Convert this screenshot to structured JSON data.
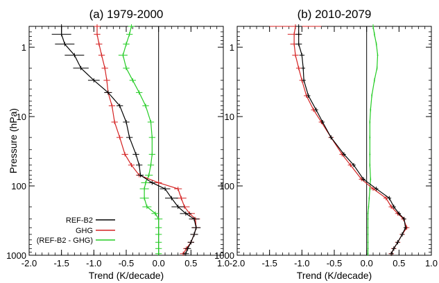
{
  "chart_data": {
    "type": "line",
    "xlabel": "Trend (K/decade)",
    "ylabel": "Pressure (hPa)",
    "xlim": [
      -2.0,
      1.0
    ],
    "ylim": [
      1000,
      0.5
    ],
    "yscale": "log",
    "x_tick_labels": [
      "-2.0",
      "-1.5",
      "-1.0",
      "-0.5",
      "0.0",
      "0.5",
      "1.0"
    ],
    "x_tick_values": [
      -2.0,
      -1.5,
      -1.0,
      -0.5,
      0.0,
      0.5,
      1.0
    ],
    "y_tick_labels": [
      "1",
      "10",
      "100",
      "1000"
    ],
    "y_tick_values": [
      1,
      10,
      100,
      1000
    ],
    "grid": false,
    "legend": {
      "placement": "bottom-left",
      "entries": [
        "REF-B2",
        "GHG",
        "(REF-B2 - GHG)"
      ]
    },
    "colors": {
      "REF-B2": "#000000",
      "GHG": "#d42020",
      "(REF-B2 - GHG)": "#22cc22",
      "zero_line": "#000000"
    },
    "panels": [
      {
        "title": "(a) 1979-2000",
        "series": [
          {
            "name": "REF-B2",
            "trend": [
              -1.5,
              -1.5,
              -1.45,
              -1.3,
              -1.2,
              -1.0,
              -0.78,
              -0.6,
              -0.5,
              -0.45,
              -0.35,
              -0.3,
              -0.28,
              -0.1,
              0.1,
              0.2,
              0.3,
              0.42,
              0.55,
              0.58,
              0.55,
              0.5,
              0.45,
              0.42
            ],
            "pressure": [
              0.5,
              0.65,
              0.9,
              1.3,
              2.0,
              3.0,
              4.5,
              7.0,
              12,
              20,
              35,
              50,
              70,
              90,
              110,
              150,
              200,
              250,
              300,
              400,
              500,
              650,
              800,
              950
            ],
            "error": [
              0.15,
              0.15,
              0.15,
              0.15,
              0.12,
              0.09,
              0.06,
              0.05,
              0.05,
              0.05,
              0.05,
              0.05,
              0.05,
              0.05,
              0.08,
              0.1,
              0.1,
              0.09,
              0.08,
              0.07,
              0.06,
              0.05,
              0.05,
              0.05
            ]
          },
          {
            "name": "GHG",
            "trend": [
              -0.95,
              -0.95,
              -0.92,
              -0.88,
              -0.83,
              -0.8,
              -0.78,
              -0.72,
              -0.68,
              -0.6,
              -0.52,
              -0.42,
              -0.3,
              0.0,
              0.3,
              0.35,
              0.4,
              0.48,
              0.57,
              0.58,
              0.55,
              0.5,
              0.43,
              0.38
            ],
            "pressure": [
              0.5,
              0.65,
              0.9,
              1.3,
              2.0,
              3.0,
              4.5,
              7.0,
              12,
              20,
              35,
              50,
              70,
              90,
              110,
              150,
              200,
              250,
              300,
              400,
              500,
              650,
              800,
              950
            ],
            "error": [
              0.05,
              0.05,
              0.05,
              0.05,
              0.05,
              0.05,
              0.05,
              0.05,
              0.05,
              0.05,
              0.05,
              0.05,
              0.05,
              0.05,
              0.06,
              0.08,
              0.08,
              0.08,
              0.07,
              0.06,
              0.05,
              0.05,
              0.05,
              0.05
            ]
          },
          {
            "name": "(REF-B2 - GHG)",
            "trend": [
              -0.42,
              -0.45,
              -0.5,
              -0.55,
              -0.5,
              -0.4,
              -0.3,
              -0.2,
              -0.12,
              -0.1,
              -0.1,
              -0.12,
              -0.15,
              -0.2,
              -0.22,
              -0.22,
              -0.18,
              -0.05,
              0.0,
              0.0,
              0.0,
              0.0,
              0.0,
              0.0
            ],
            "pressure": [
              0.5,
              0.65,
              0.9,
              1.3,
              2.0,
              3.0,
              4.5,
              7.0,
              12,
              20,
              35,
              50,
              70,
              90,
              110,
              150,
              200,
              250,
              300,
              400,
              500,
              650,
              800,
              950
            ],
            "error": [
              0.05,
              0.05,
              0.05,
              0.07,
              0.05,
              0.05,
              0.05,
              0.05,
              0.05,
              0.05,
              0.05,
              0.05,
              0.06,
              0.07,
              0.07,
              0.07,
              0.07,
              0.06,
              0.06,
              0.05,
              0.05,
              0.05,
              0.05,
              0.05
            ]
          }
        ]
      },
      {
        "title": "(b) 2010-2079",
        "series": [
          {
            "name": "REF-B2",
            "trend": [
              -1.05,
              -1.05,
              -1.05,
              -1.0,
              -0.98,
              -0.97,
              -0.9,
              -0.78,
              -0.68,
              -0.55,
              -0.35,
              -0.2,
              -0.05,
              0.15,
              0.35,
              0.42,
              0.5,
              0.58,
              0.6,
              0.55,
              0.48,
              0.42,
              0.38
            ],
            "pressure": [
              0.5,
              0.65,
              0.9,
              1.3,
              2.0,
              3.0,
              5.0,
              8.0,
              12,
              20,
              35,
              50,
              80,
              110,
              150,
              200,
              250,
              300,
              400,
              500,
              650,
              800,
              950
            ],
            "error": [
              0.05,
              0.05,
              0.05,
              0.04,
              0.03,
              0.03,
              0.03,
              0.03,
              0.03,
              0.03,
              0.03,
              0.03,
              0.03,
              0.03,
              0.03,
              0.03,
              0.03,
              0.03,
              0.03,
              0.03,
              0.03,
              0.03,
              0.03
            ]
          },
          {
            "name": "GHG",
            "trend": [
              -1.1,
              -1.12,
              -1.12,
              -1.1,
              -1.05,
              -1.0,
              -0.93,
              -0.82,
              -0.7,
              -0.55,
              -0.38,
              -0.25,
              -0.08,
              0.1,
              0.3,
              0.38,
              0.48,
              0.57,
              0.62,
              0.55,
              0.48,
              0.42,
              0.38
            ],
            "pressure": [
              0.5,
              0.65,
              0.9,
              1.3,
              2.0,
              3.0,
              5.0,
              8.0,
              12,
              20,
              35,
              50,
              80,
              110,
              150,
              200,
              250,
              300,
              400,
              500,
              650,
              800,
              950
            ],
            "error": [
              0.4,
              0.1,
              0.06,
              0.05,
              0.04,
              0.04,
              0.04,
              0.04,
              0.04,
              0.04,
              0.04,
              0.04,
              0.04,
              0.04,
              0.04,
              0.04,
              0.04,
              0.04,
              0.04,
              0.04,
              0.04,
              0.04,
              0.04
            ]
          },
          {
            "name": "(REF-B2 - GHG)",
            "trend": [
              0.1,
              0.12,
              0.15,
              0.17,
              0.16,
              0.12,
              0.08,
              0.06,
              0.05,
              0.05,
              0.05,
              0.05,
              0.06,
              0.05,
              0.04,
              0.03,
              0.02,
              0.02,
              0.02,
              0.02,
              0.02,
              0.02,
              0.02
            ],
            "pressure": [
              0.5,
              0.65,
              0.9,
              1.3,
              2.0,
              3.0,
              5.0,
              8.0,
              12,
              20,
              35,
              50,
              80,
              110,
              150,
              200,
              250,
              300,
              400,
              500,
              650,
              800,
              950
            ],
            "error": [
              0.01,
              0.01,
              0.01,
              0.01,
              0.01,
              0.01,
              0.01,
              0.01,
              0.01,
              0.01,
              0.01,
              0.01,
              0.01,
              0.01,
              0.01,
              0.01,
              0.01,
              0.01,
              0.01,
              0.01,
              0.01,
              0.01,
              0.01
            ]
          }
        ]
      }
    ]
  }
}
